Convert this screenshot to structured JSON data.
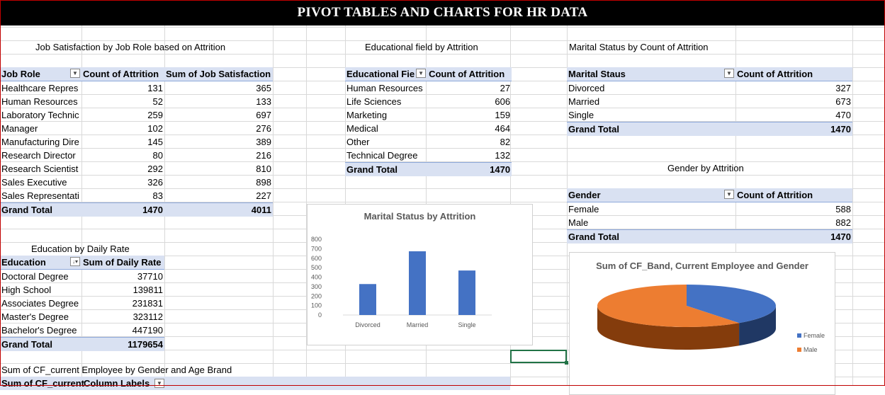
{
  "banner": {
    "title": "PIVOT TABLES AND CHARTS FOR HR DATA"
  },
  "job_satisfaction": {
    "title": "Job Satisfaction by Job Role based on Attrition",
    "headers": [
      "Job Role",
      "Count of Attrition",
      "Sum of Job Satisfaction"
    ],
    "rows": [
      [
        "Healthcare Repres",
        "131",
        "365"
      ],
      [
        "Human Resources",
        "52",
        "133"
      ],
      [
        "Laboratory Technic",
        "259",
        "697"
      ],
      [
        "Manager",
        "102",
        "276"
      ],
      [
        "Manufacturing Dire",
        "145",
        "389"
      ],
      [
        "Research Director",
        "80",
        "216"
      ],
      [
        "Research Scientist",
        "292",
        "810"
      ],
      [
        "Sales Executive",
        "326",
        "898"
      ],
      [
        "Sales Representati",
        "83",
        "227"
      ]
    ],
    "total": [
      "Grand Total",
      "1470",
      "4011"
    ]
  },
  "educational_field": {
    "title": "Educational field by Attrition",
    "headers": [
      "Educational Fie",
      "Count of Attrition"
    ],
    "rows": [
      [
        "Human Resources",
        "27"
      ],
      [
        "Life Sciences",
        "606"
      ],
      [
        "Marketing",
        "159"
      ],
      [
        "Medical",
        "464"
      ],
      [
        "Other",
        "82"
      ],
      [
        "Technical Degree",
        "132"
      ]
    ],
    "total": [
      "Grand Total",
      "1470"
    ]
  },
  "marital_status": {
    "title": "Marital Status by  Count of Attrition",
    "headers": [
      "Marital Staus",
      "Count of Attrition"
    ],
    "rows": [
      [
        "Divorced",
        "327"
      ],
      [
        "Married",
        "673"
      ],
      [
        "Single",
        "470"
      ]
    ],
    "total": [
      "Grand Total",
      "1470"
    ]
  },
  "gender": {
    "title": "Gender by Attrition",
    "headers": [
      "Gender",
      "Count of Attrition"
    ],
    "rows": [
      [
        "Female",
        "588"
      ],
      [
        "Male",
        "882"
      ]
    ],
    "total": [
      "Grand Total",
      "1470"
    ]
  },
  "education_daily_rate": {
    "title": "Education by Daily Rate",
    "headers": [
      "Education",
      "Sum of Daily Rate"
    ],
    "rows": [
      [
        "Doctoral Degree",
        "37710"
      ],
      [
        "High School",
        "139811"
      ],
      [
        "Associates Degree",
        "231831"
      ],
      [
        "Master's Degree",
        "323112"
      ],
      [
        "Bachelor's Degree",
        "447190"
      ]
    ],
    "total": [
      "Grand Total",
      "1179654"
    ]
  },
  "cf_table": {
    "title": "Sum of CF_current Employee by Gender and Age Brand",
    "header_left": "Sum of CF_current",
    "header_right": "Column Labels"
  },
  "chart_data": [
    {
      "type": "bar",
      "title": "Marital Status by Attrition",
      "categories": [
        "Divorced",
        "Married",
        "Single"
      ],
      "values": [
        327,
        673,
        470
      ],
      "ylim": [
        0,
        800
      ],
      "yticks": [
        "800",
        "700",
        "600",
        "500",
        "400",
        "300",
        "200",
        "100",
        "0"
      ],
      "grid": false,
      "color": "#4472c4"
    },
    {
      "type": "pie",
      "title": "Sum of CF_Band, Current Employee and Gender",
      "categories": [
        "Female",
        "Male"
      ],
      "values": [
        588,
        882
      ],
      "colors": [
        "#4472c4",
        "#ed7d31"
      ],
      "legend": "right"
    }
  ]
}
